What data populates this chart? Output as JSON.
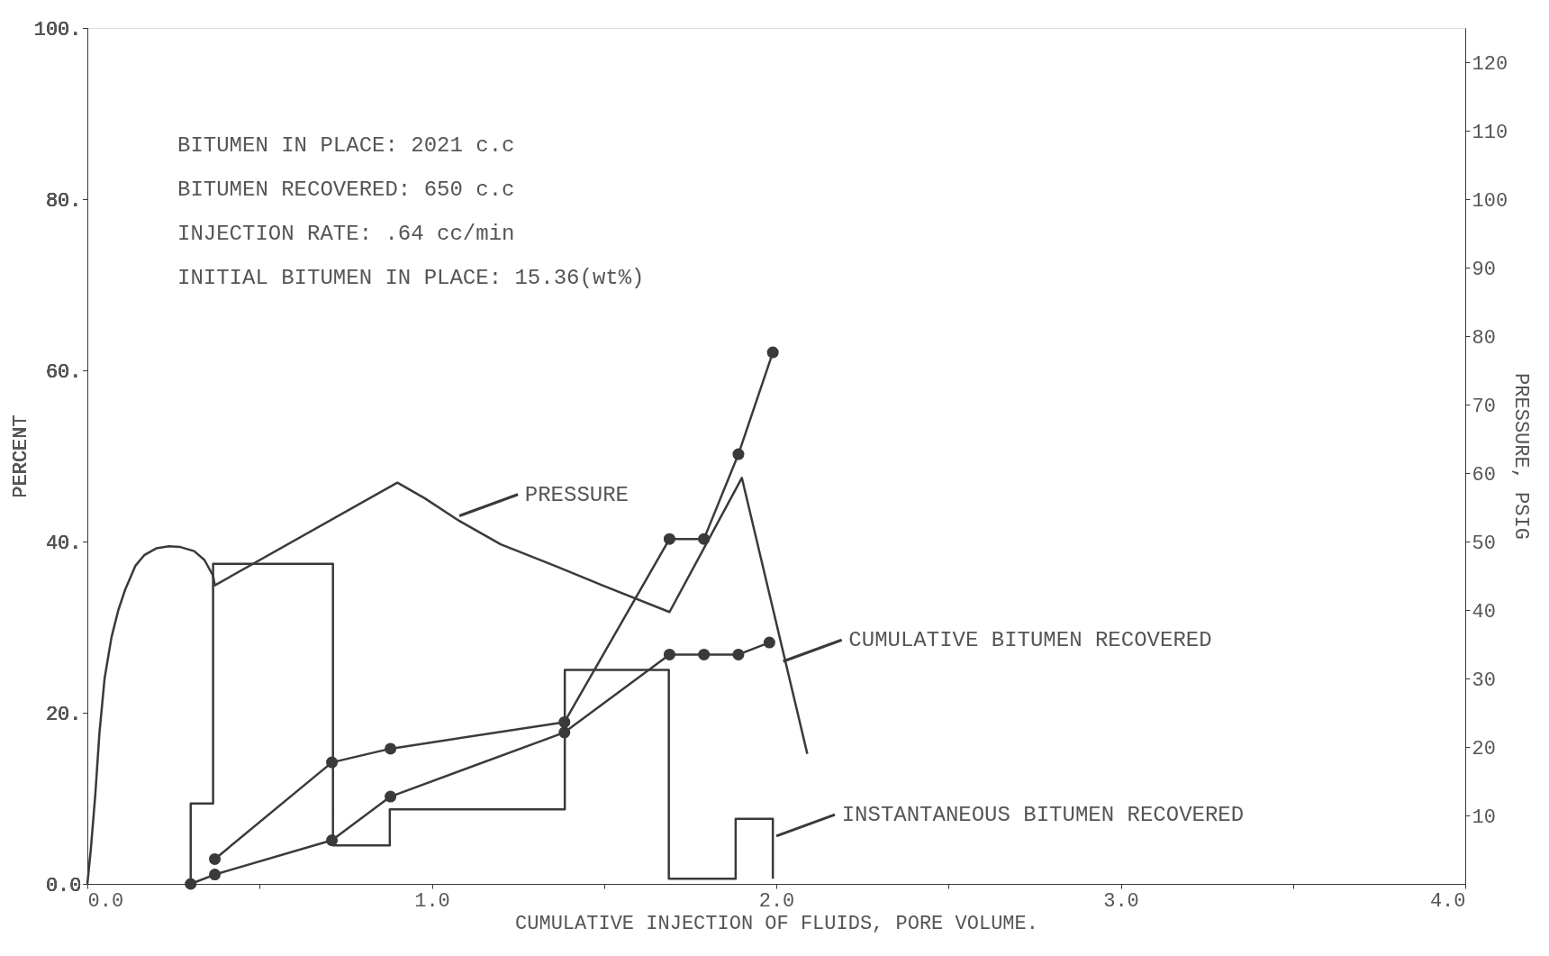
{
  "chart_data": {
    "type": "line",
    "xlabel": "CUMULATIVE INJECTION OF FLUIDS, PORE VOLUME.",
    "ylabel": "PERCENT",
    "y2label": "PRESSURE, PSIG",
    "xlim": [
      0,
      4
    ],
    "xticks": [
      {
        "value": 0,
        "label": "0.0"
      },
      {
        "value": 0.5,
        "label": null
      },
      {
        "value": 1,
        "label": "1.0"
      },
      {
        "value": 1.5,
        "label": null
      },
      {
        "value": 2,
        "label": "2.0"
      },
      {
        "value": 2.5,
        "label": null
      },
      {
        "value": 3,
        "label": "3.0"
      },
      {
        "value": 3.5,
        "label": null
      },
      {
        "value": 4,
        "label": "4.0"
      }
    ],
    "ylim": [
      0,
      100
    ],
    "yticks": [
      {
        "value": 0,
        "label": "0.0"
      },
      {
        "value": 20,
        "label": "20."
      },
      {
        "value": 40,
        "label": "40."
      },
      {
        "value": 60,
        "label": "60."
      },
      {
        "value": 80,
        "label": "80."
      },
      {
        "value": 100,
        "label": "100."
      }
    ],
    "y2lim": [
      0,
      125
    ],
    "y2ticks": [
      10,
      20,
      30,
      40,
      50,
      60,
      70,
      80,
      90,
      100,
      110,
      120
    ],
    "grid": false,
    "annotations": [
      "BITUMEN IN PLACE:  2021 c.c",
      "BITUMEN RECOVERED:  650 c.c",
      "INJECTION RATE: .64 cc/min",
      "INITIAL BITUMEN IN PLACE:  15.36(wt%)",
      {
        "text": "PRESSURE",
        "x": 1.08,
        "y": 43.0
      },
      {
        "text": "CUMULATIVE BITUMEN RECOVERED",
        "x": 2.02,
        "y": 26.0
      },
      {
        "text": "INSTANTANEOUS BITUMEN RECOVERED",
        "x": 2.0,
        "y": 5.6
      }
    ],
    "series": [
      {
        "axis": "y2",
        "color": "#3a3a3a",
        "marker": "none",
        "x": [
          0,
          0.01,
          0.023,
          0.035,
          0.05,
          0.07,
          0.09,
          0.11,
          0.14,
          0.165,
          0.2,
          0.237,
          0.27,
          0.31,
          0.34,
          0.365,
          0.37,
          0.9,
          0.98,
          1.08,
          1.2,
          1.36,
          1.5,
          1.69,
          1.9,
          2.09
        ],
        "values": [
          0,
          5,
          13,
          22,
          30,
          36,
          40,
          43,
          46.5,
          48,
          49,
          49.3,
          49.2,
          48.6,
          47.3,
          45,
          43.6,
          58.6,
          56.3,
          53,
          49.6,
          46.4,
          43.5,
          39.7,
          59.3,
          19
        ]
      },
      {
        "type": "step",
        "color": "#3a3a3a",
        "marker": "none",
        "x": [
          0.3,
          0.3,
          0.365,
          0.713,
          0.878,
          1.386,
          1.688,
          1.882,
          1.99,
          1.99
        ],
        "values": [
          0,
          9.4,
          37.4,
          4.5,
          8.7,
          25.0,
          0.6,
          7.6,
          0.6,
          0.6
        ]
      },
      {
        "color": "#3a3a3a",
        "marker": "circle",
        "x": [
          0.3,
          0.37,
          0.71,
          0.88,
          1.385,
          1.69,
          1.79,
          1.89,
          1.98
        ],
        "values": [
          0,
          1.1,
          5.1,
          10.2,
          17.7,
          26.8,
          26.8,
          26.8,
          28.2
        ]
      },
      {
        "color": "#3a3a3a",
        "marker": "circle",
        "x": [
          0.37,
          0.71,
          0.88,
          1.385,
          1.69,
          1.79,
          1.89,
          1.99
        ],
        "values": [
          2.9,
          14.2,
          15.8,
          18.9,
          40.3,
          40.3,
          50.2,
          62.1
        ]
      }
    ]
  }
}
